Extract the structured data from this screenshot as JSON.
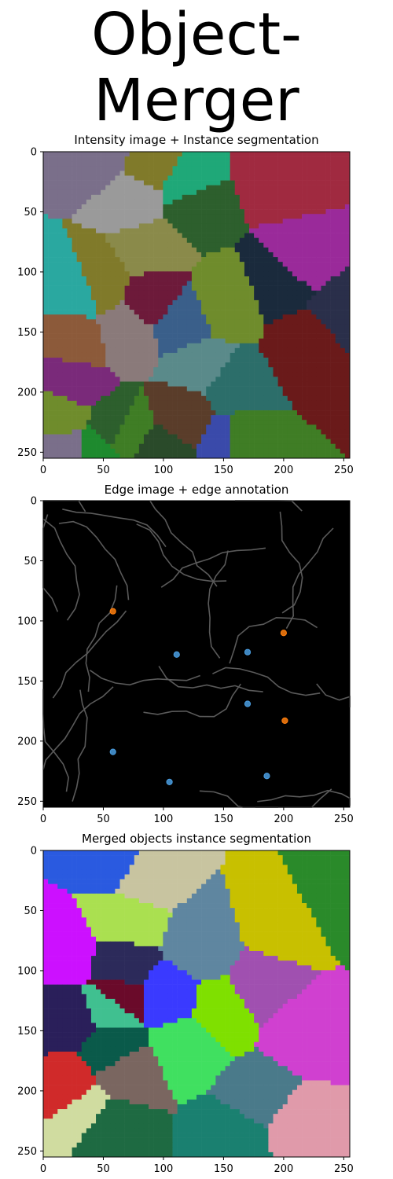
{
  "figure": {
    "title": "Object-\nMerger",
    "background": "#ffffff"
  },
  "chart_data": [
    {
      "type": "heatmap",
      "title": "Intensity image + Instance segmentation",
      "xlim": [
        0,
        255
      ],
      "ylim": [
        255,
        0
      ],
      "x_ticks": [
        0,
        50,
        100,
        150,
        200,
        250
      ],
      "y_ticks": [
        0,
        50,
        100,
        150,
        200,
        250
      ],
      "xlabel": "",
      "ylabel": "",
      "grid": false,
      "palette": [
        "#2d5f2d",
        "#3f7d25",
        "#6f8c2c",
        "#807a2a",
        "#7a6f8a",
        "#2a2f4a",
        "#3a5f8a",
        "#2c6e6a",
        "#1a2a3c",
        "#5a3d2a",
        "#6d1a3a",
        "#7a2a7a",
        "#9a2a9a",
        "#1e8a2e",
        "#2aa8a0",
        "#1fa878",
        "#8c5a3a",
        "#a02a40",
        "#3a4aaa",
        "#8a7a7a",
        "#8a8a4a",
        "#5a8a8a",
        "#9a9a9a",
        "#6a1a1a",
        "#2a4a2a"
      ]
    },
    {
      "type": "scatter",
      "title": "Edge image + edge annotation",
      "xlim": [
        0,
        255
      ],
      "ylim": [
        255,
        0
      ],
      "x_ticks": [
        0,
        50,
        100,
        150,
        200,
        250
      ],
      "y_ticks": [
        0,
        50,
        100,
        150,
        200,
        250
      ],
      "xlabel": "",
      "ylabel": "",
      "grid": false,
      "background": "#000000",
      "edge_color": "#5a5a5a",
      "series": [
        {
          "color": "#ff7f0e",
          "points": [
            [
              58,
              92
            ],
            [
              200,
              110
            ],
            [
              201,
              183
            ]
          ]
        },
        {
          "color": "#4a9de0",
          "points": [
            [
              111,
              128
            ],
            [
              170,
              126
            ],
            [
              170,
              169
            ],
            [
              58,
              209
            ],
            [
              105,
              234
            ],
            [
              186,
              229
            ]
          ]
        }
      ]
    },
    {
      "type": "heatmap",
      "title": "Merged objects instance segmentation",
      "xlim": [
        0,
        255
      ],
      "ylim": [
        255,
        0
      ],
      "x_ticks": [
        0,
        50,
        100,
        150,
        200,
        250
      ],
      "y_ticks": [
        0,
        50,
        100,
        150,
        200,
        250
      ],
      "xlabel": "",
      "ylabel": "",
      "grid": false,
      "palette": [
        "#2c2a5a",
        "#7fe000",
        "#4a7a8a",
        "#7a6660",
        "#1e6a42",
        "#6a0a2a",
        "#d02a2a",
        "#aae050",
        "#0a5a4a",
        "#2a5ae0",
        "#3a3aff",
        "#e09aaa",
        "#a050b0",
        "#c8c000",
        "#cc10ff",
        "#d040d0",
        "#5f86a0",
        "#d0dca0",
        "#c8c4a0",
        "#1a8070",
        "#2a1f5a",
        "#40e060",
        "#2a8a2a",
        "#40c090",
        "#c070a0",
        "#7a7a40"
      ]
    }
  ]
}
